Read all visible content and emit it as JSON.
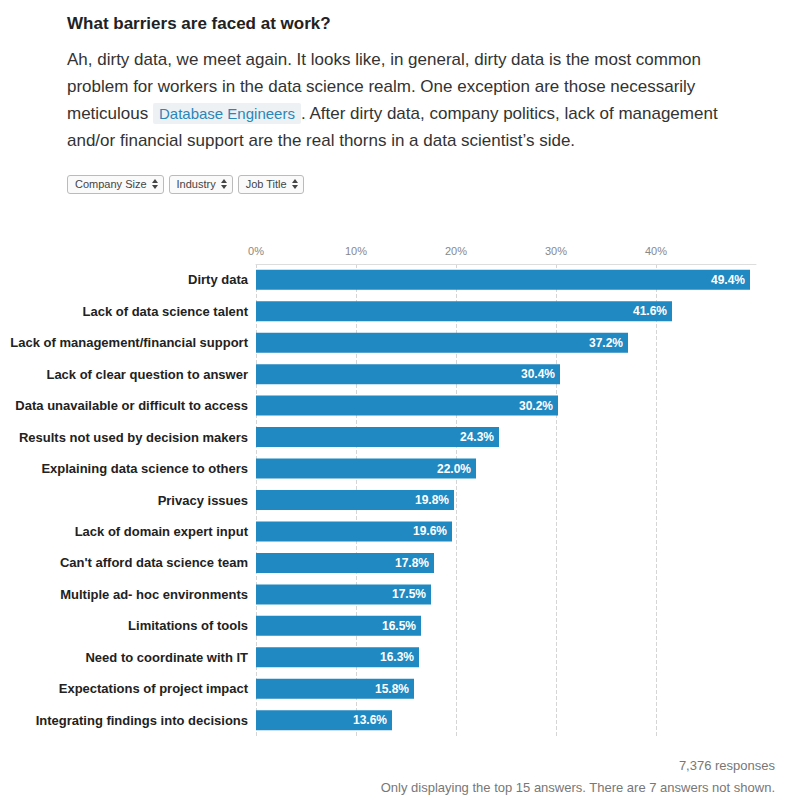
{
  "header": {
    "title": "What barriers are faced at work?",
    "text_before": "Ah, dirty data, we meet again. It looks like, in general, dirty data is the most common problem for workers in the data science realm. One exception are those necessarily meticulous ",
    "highlight": "Database Engineers",
    "text_after": ". After dirty data, company politics, lack of management and/or financial support are the real thorns in a data scientist’s side."
  },
  "filters": [
    "Company Size",
    "Industry",
    "Job Title"
  ],
  "chart_data": {
    "type": "bar",
    "orientation": "horizontal",
    "categories": [
      "Dirty data",
      "Lack of data science talent",
      "Lack of management/financial support",
      "Lack of clear question to answer",
      "Data unavailable or difficult to access",
      "Results not used by decision makers",
      "Explaining data science to others",
      "Privacy issues",
      "Lack of domain expert input",
      "Can't afford data science team",
      "Multiple ad- hoc environments",
      "Limitations of tools",
      "Need to coordinate with IT",
      "Expectations of project impact",
      "Integrating findings into decisions"
    ],
    "values": [
      49.4,
      41.6,
      37.2,
      30.4,
      30.2,
      24.3,
      22.0,
      19.8,
      19.6,
      17.8,
      17.5,
      16.5,
      16.3,
      15.8,
      13.6
    ],
    "value_labels": [
      "49.4%",
      "41.6%",
      "37.2%",
      "30.4%",
      "30.2%",
      "24.3%",
      "22.0%",
      "19.8%",
      "19.6%",
      "17.8%",
      "17.5%",
      "16.5%",
      "16.3%",
      "15.8%",
      "13.6%"
    ],
    "color": "#2189c1",
    "xlim": [
      0,
      50
    ],
    "xticks": [
      {
        "value": 0,
        "label": "0%"
      },
      {
        "value": 10,
        "label": "10%"
      },
      {
        "value": 20,
        "label": "20%"
      },
      {
        "value": 30,
        "label": "30%"
      },
      {
        "value": 40,
        "label": "40%"
      }
    ],
    "grid": true,
    "data_labels": true
  },
  "footer": {
    "responses": "7,376 responses",
    "note": "Only displaying the top 15 answers. There are 7 answers not shown."
  }
}
